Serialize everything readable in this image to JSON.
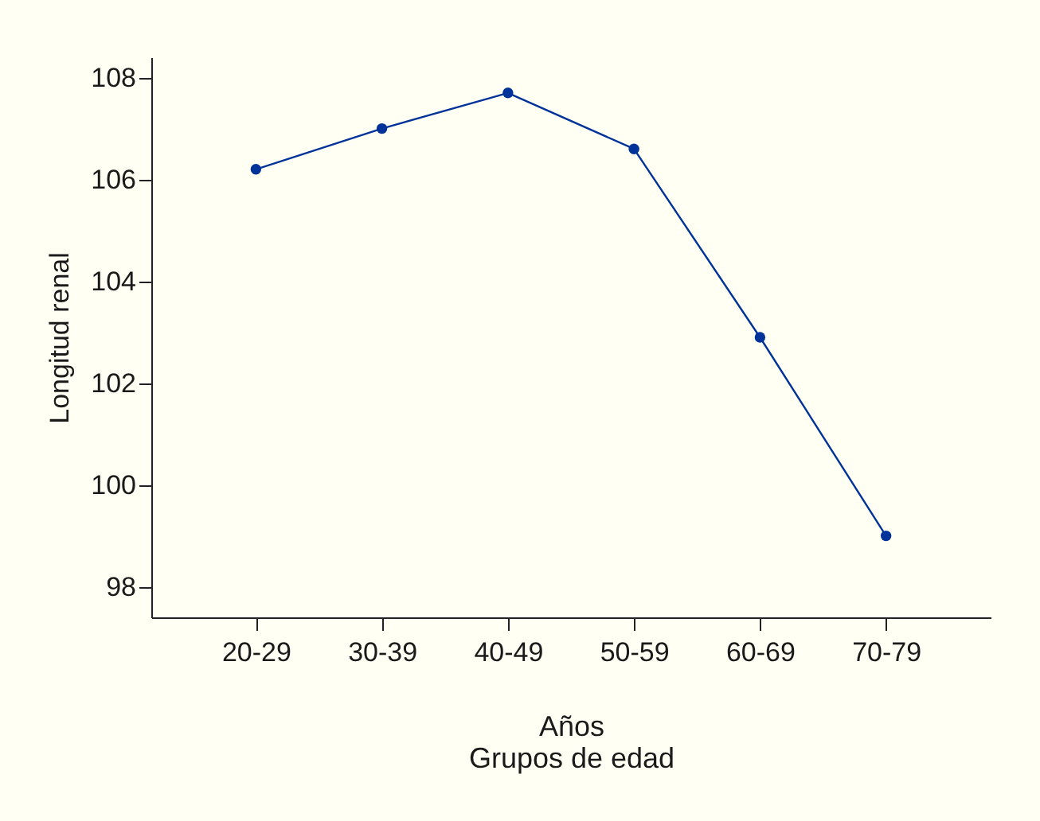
{
  "chart_data": {
    "type": "line",
    "xlabel": "Años\nGrupos de edad",
    "ylabel": "Longitud renal",
    "categories": [
      "20-29",
      "30-39",
      "40-49",
      "50-59",
      "60-69",
      "70-79"
    ],
    "series": [
      {
        "color": "#003399",
        "values": [
          106.2,
          107.0,
          107.7,
          106.6,
          102.9,
          99.0
        ]
      }
    ],
    "ylim": [
      97.4,
      108.4
    ],
    "yticks": [
      98,
      100,
      102,
      104,
      106,
      108
    ],
    "grid": false,
    "marker": "circle",
    "line_style": "solid"
  }
}
